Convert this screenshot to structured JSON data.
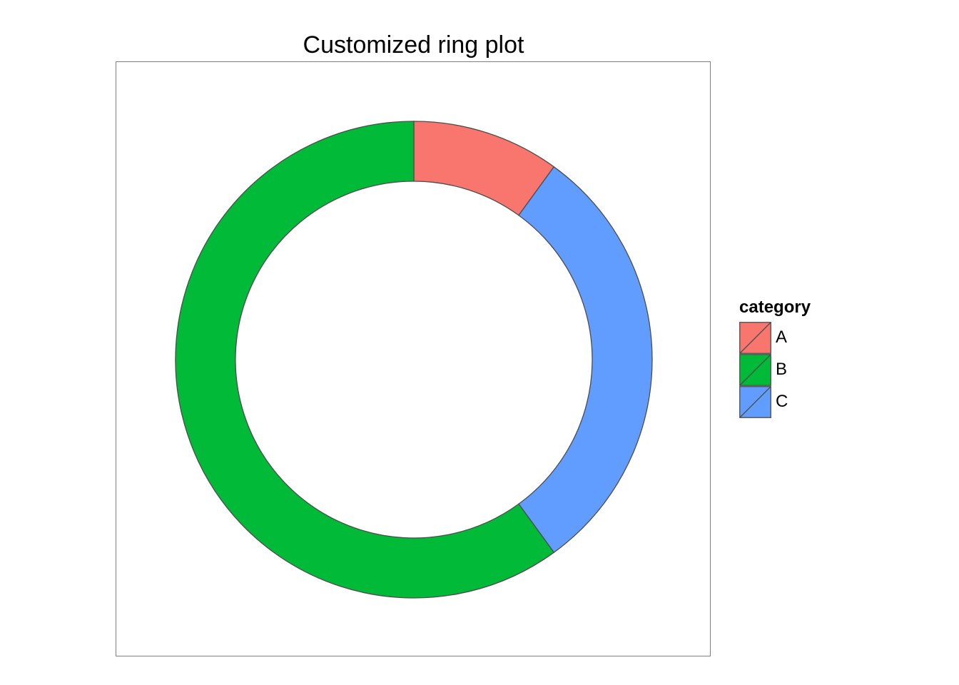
{
  "chart_data": {
    "type": "pie",
    "variant": "ring",
    "title": "Customized ring plot",
    "legend_title": "category",
    "legend_position": "right",
    "categories": [
      "A",
      "B",
      "C"
    ],
    "values": [
      10,
      60,
      30
    ],
    "colors": [
      "#F8766D",
      "#00BA38",
      "#619CFF"
    ],
    "slice_order": [
      "A",
      "C",
      "B"
    ],
    "grid": false,
    "outline_color": "#4d4d4d"
  }
}
